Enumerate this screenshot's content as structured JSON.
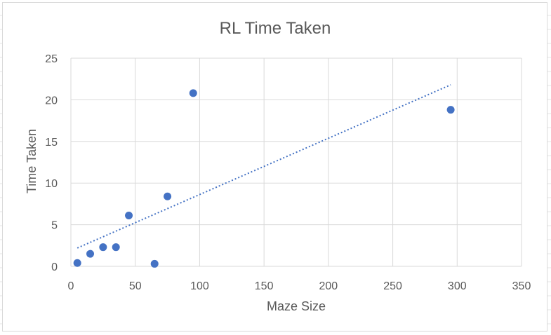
{
  "chart_data": {
    "type": "scatter",
    "title": "RL Time Taken",
    "xlabel": "Maze Size",
    "ylabel": "Time Taken",
    "xlim": [
      0,
      350
    ],
    "ylim": [
      0,
      25
    ],
    "xticks": [
      0,
      50,
      100,
      150,
      200,
      250,
      300,
      350
    ],
    "yticks": [
      0,
      5,
      10,
      15,
      20,
      25
    ],
    "grid": true,
    "legend": "none",
    "series": [
      {
        "color": "#4472c4",
        "points": [
          {
            "x": 5,
            "y": 0.4
          },
          {
            "x": 15,
            "y": 1.5
          },
          {
            "x": 25,
            "y": 2.3
          },
          {
            "x": 35,
            "y": 2.3
          },
          {
            "x": 45,
            "y": 6.1
          },
          {
            "x": 65,
            "y": 0.3
          },
          {
            "x": 75,
            "y": 8.4
          },
          {
            "x": 95,
            "y": 20.8
          },
          {
            "x": 295,
            "y": 18.8
          }
        ],
        "trendline": {
          "type": "linear",
          "style": "dotted",
          "color": "#4472c4",
          "from": {
            "x": 5,
            "y": 2.2
          },
          "to": {
            "x": 295,
            "y": 21.8
          }
        }
      }
    ]
  }
}
